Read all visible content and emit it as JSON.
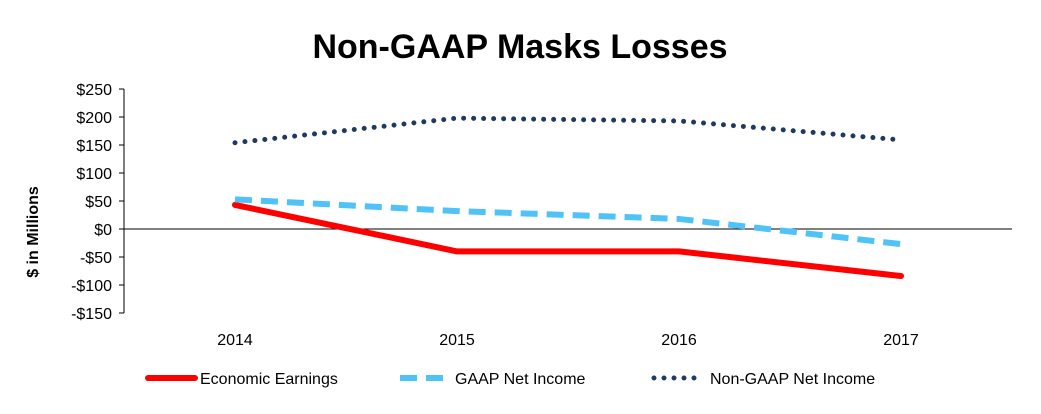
{
  "chart_data": {
    "type": "line",
    "title": "Non-GAAP Masks Losses",
    "ylabel": "$ in Millions",
    "xlabel": "",
    "categories": [
      "2014",
      "2015",
      "2016",
      "2017"
    ],
    "ylim": [
      -150,
      250
    ],
    "yticks": [
      250,
      200,
      150,
      100,
      50,
      0,
      -50,
      -100,
      -150
    ],
    "ytick_labels": [
      "$250",
      "$200",
      "$150",
      "$100",
      "$50",
      "$0",
      "-$50",
      "-$100",
      "-$150"
    ],
    "grid": false,
    "legend_position": "bottom",
    "series": [
      {
        "name": "Economic Earnings",
        "values": [
          43,
          -40,
          -40,
          -84
        ],
        "color": "#ff0000",
        "style": "solid"
      },
      {
        "name": "GAAP Net Income",
        "values": [
          53,
          32,
          18,
          -27
        ],
        "color": "#4fc3f7",
        "style": "dashed"
      },
      {
        "name": "Non-GAAP Net Income",
        "values": [
          154,
          198,
          193,
          159
        ],
        "color": "#1f3a5f",
        "style": "dotted"
      }
    ]
  }
}
